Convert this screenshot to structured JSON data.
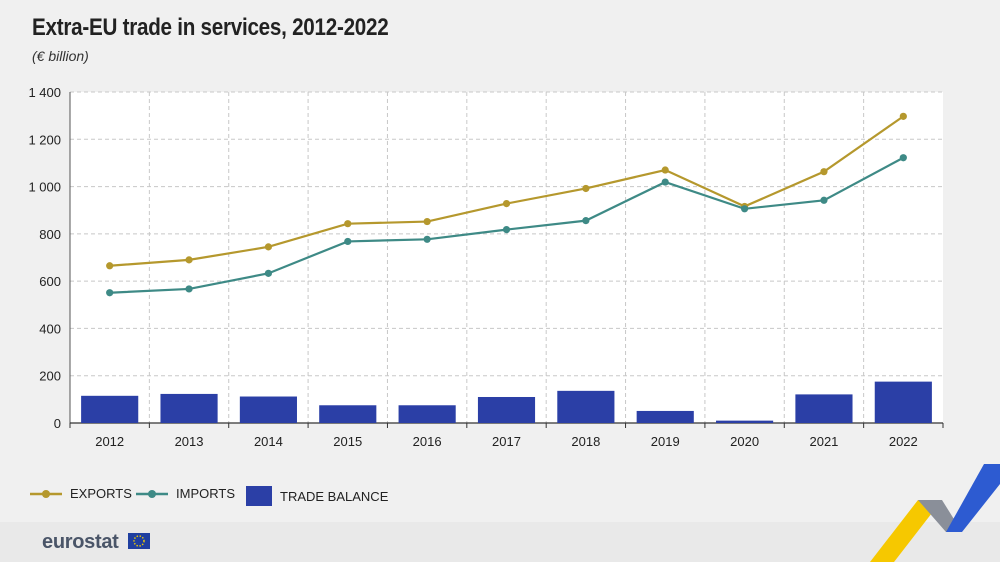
{
  "header": {
    "title": "Extra-EU trade in services, 2012-2022",
    "subtitle": "(€ billion)"
  },
  "legend": {
    "exports_label": "EXPORTS",
    "imports_label": "IMPORTS",
    "balance_label": "TRADE BALANCE"
  },
  "footer": {
    "logo_text": "eurostat"
  },
  "colors": {
    "exports": "#b5982d",
    "imports": "#3e8a86",
    "balance": "#2b3fa6",
    "grid": "#c8c8c8",
    "plot_bg": "#ffffff"
  },
  "chart_data": {
    "type": "line+bar",
    "title": "Extra-EU trade in services, 2012-2022",
    "subtitle": "(€ billion)",
    "categories": [
      "2012",
      "2013",
      "2014",
      "2015",
      "2016",
      "2017",
      "2018",
      "2019",
      "2020",
      "2021",
      "2022"
    ],
    "series": [
      {
        "name": "EXPORTS",
        "type": "line",
        "values": [
          665,
          690,
          745,
          843,
          852,
          928,
          992,
          1070,
          916,
          1063,
          1297
        ]
      },
      {
        "name": "IMPORTS",
        "type": "line",
        "values": [
          551,
          567,
          633,
          768,
          777,
          818,
          856,
          1019,
          906,
          942,
          1122
        ]
      },
      {
        "name": "TRADE BALANCE",
        "type": "bar",
        "values": [
          115,
          123,
          112,
          75,
          75,
          110,
          136,
          51,
          10,
          121,
          175
        ]
      }
    ],
    "yticks": [
      0,
      200,
      400,
      600,
      800,
      1000,
      1200,
      1400
    ],
    "ytick_labels": [
      "0",
      "200",
      "400",
      "600",
      "800",
      "1 000",
      "1 200",
      "1 400"
    ],
    "ylim": [
      0,
      1400
    ],
    "grid": true,
    "legend_position": "bottom-left"
  }
}
